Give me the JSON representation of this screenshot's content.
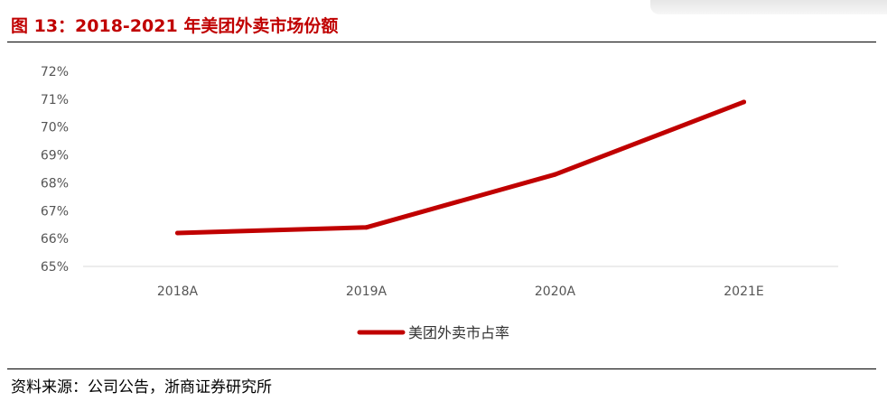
{
  "header": {
    "title": "图 13：2018-2021 年美团外卖市场份额"
  },
  "footer": {
    "source": "资料来源：公司公告，浙商证券研究所"
  },
  "chart_data": {
    "type": "line",
    "categories": [
      "2018A",
      "2019A",
      "2020A",
      "2021E"
    ],
    "series": [
      {
        "name": "美团外卖市占率",
        "values": [
          66.2,
          66.4,
          68.3,
          70.9
        ],
        "color": "#c00000"
      }
    ],
    "yticks": [
      "65%",
      "66%",
      "67%",
      "68%",
      "69%",
      "70%",
      "71%",
      "72%"
    ],
    "ylim": [
      65,
      72
    ],
    "legend_position": "bottom-center",
    "grid": false
  }
}
